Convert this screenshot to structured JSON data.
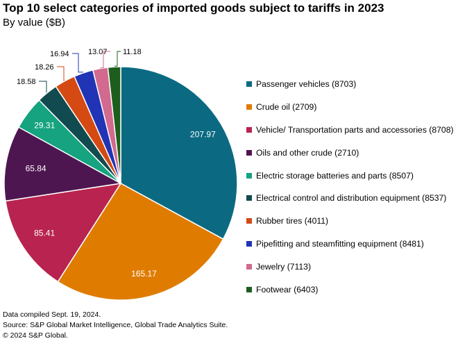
{
  "header": {
    "title": "Top 10 select categories of imported goods subject to tariffs in 2023",
    "subtitle": "By value ($B)"
  },
  "chart_data": {
    "type": "pie",
    "title": "Top 10 select categories of imported goods subject to tariffs in 2023",
    "subtitle": "By value ($B)",
    "legend_position": "right",
    "slices": [
      {
        "label": "Passenger vehicles (8703)",
        "value": 207.97,
        "display": "207.97",
        "color": "#0b6a82"
      },
      {
        "label": "Crude oil (2709)",
        "value": 165.17,
        "display": "165.17",
        "color": "#df7c00"
      },
      {
        "label": "Vehicle/ Transportation parts and accessories (8708)",
        "value": 85.41,
        "display": "85.41",
        "color": "#b8234f"
      },
      {
        "label": "Oils and other crude (2710)",
        "value": 65.84,
        "display": "65.84",
        "color": "#4e1650"
      },
      {
        "label": "Electric storage batteries and parts (8507)",
        "value": 29.31,
        "display": "29.31",
        "color": "#16a37f"
      },
      {
        "label": "Electrical control and distribution equipment (8537)",
        "value": 18.58,
        "display": "18.58",
        "color": "#114a4f"
      },
      {
        "label": "Rubber tires (4011)",
        "value": 18.26,
        "display": "18.26",
        "color": "#d44a12"
      },
      {
        "label": "Pipefitting and steamfitting equipment (8481)",
        "value": 16.94,
        "display": "16.94",
        "color": "#2034b5"
      },
      {
        "label": "Jewelry (7113)",
        "value": 13.07,
        "display": "13.07",
        "color": "#d26a8f"
      },
      {
        "label": "Footwear (6403)",
        "value": 11.18,
        "display": "11.18",
        "color": "#1d5e1d"
      }
    ]
  },
  "footer": {
    "lines": [
      "Data compiled Sept. 19, 2024.",
      "Source: S&P Global Market Intelligence, Global Trade Analytics Suite.",
      "© 2024 S&P Global."
    ]
  }
}
